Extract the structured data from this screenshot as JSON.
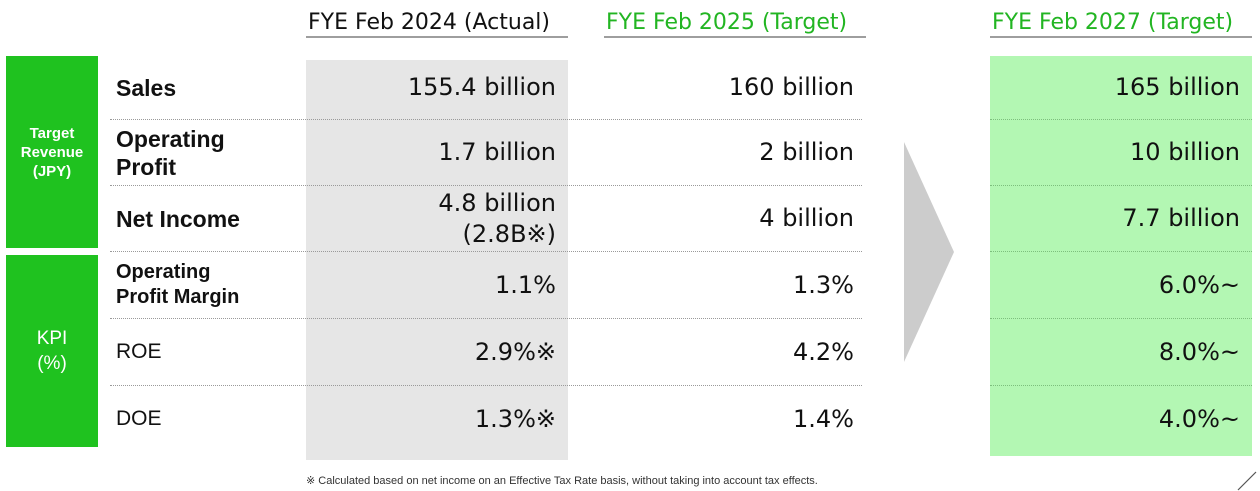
{
  "headers": {
    "actual": "FYE Feb 2024 (Actual)",
    "target_2025": "FYE Feb 2025 (Target)",
    "target_2027": "FYE Feb 2027 (Target)"
  },
  "groups": {
    "revenue": "Target\nRevenue\n(JPY)",
    "kpi": "KPI\n(%)"
  },
  "rows": [
    {
      "label": "Sales",
      "actual": "155.4 billion",
      "target_2025": "160 billion",
      "target_2027": "165 billion"
    },
    {
      "label": "Operating\nProfit",
      "actual": "1.7 billion",
      "target_2025": "2 billion",
      "target_2027": "10 billion"
    },
    {
      "label": "Net Income",
      "actual": "4.8 billion\n(2.8B※)",
      "target_2025": "4 billion",
      "target_2027": "7.7 billion"
    },
    {
      "label": "Operating\nProfit Margin",
      "actual": "1.1%",
      "target_2025": "1.3%",
      "target_2027": "6.0%~"
    },
    {
      "label": "ROE",
      "actual": "2.9%※",
      "target_2025": "4.2%",
      "target_2027": "8.0%~"
    },
    {
      "label": "DOE",
      "actual": "1.3%※",
      "target_2025": "1.4%",
      "target_2027": "4.0%~"
    }
  ],
  "footnote": "※ Calculated based on net income on an Effective Tax Rate basis, without taking into account tax effects.",
  "colors": {
    "accent_green": "#1fc21f",
    "header_green": "#22b522",
    "target_2027_bg": "#b3f7b3",
    "actual_bg": "#e6e6e6",
    "arrow_gray": "#cccccc"
  }
}
